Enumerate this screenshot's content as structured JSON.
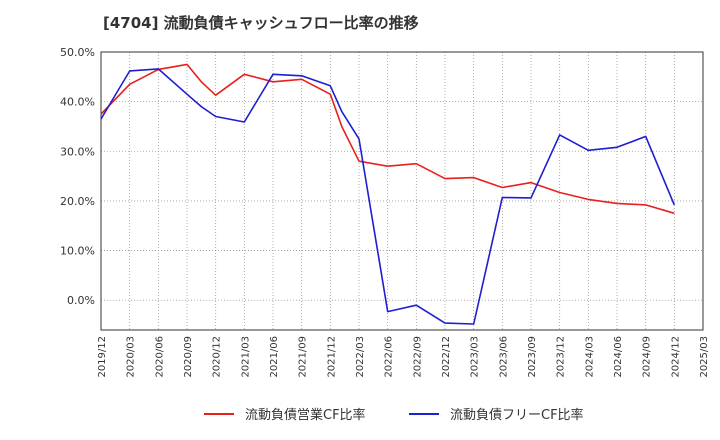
{
  "chart_data": {
    "type": "line",
    "title": "[4704]  流動負債キャッシュフロー比率の推移",
    "xlabel": "",
    "ylabel": "",
    "ylim": [
      -6,
      50
    ],
    "yticks": [
      0,
      10,
      20,
      30,
      40,
      50
    ],
    "ytick_labels": [
      "0.0%",
      "10.0%",
      "20.0%",
      "30.0%",
      "40.0%",
      "50.0%"
    ],
    "x_labels": [
      "2019/12",
      "2020/03",
      "2020/06",
      "2020/09",
      "2020/12",
      "2021/03",
      "2021/06",
      "2021/09",
      "2021/12",
      "2022/03",
      "2022/06",
      "2022/09",
      "2022/12",
      "2023/03",
      "2023/06",
      "2023/09",
      "2023/12",
      "2024/03",
      "2024/06",
      "2024/09",
      "2024/12",
      "2025/03"
    ],
    "grid": true,
    "legend_position": "bottom",
    "series": [
      {
        "name": "流動負債営業CF比率",
        "color": "#e8201c",
        "points": [
          [
            0,
            37.5
          ],
          [
            1,
            43.5
          ],
          [
            2,
            46.5
          ],
          [
            3,
            47.5
          ],
          [
            3.5,
            44.0
          ],
          [
            4,
            41.3
          ],
          [
            5,
            45.5
          ],
          [
            6,
            44.0
          ],
          [
            7,
            44.5
          ],
          [
            8,
            41.5
          ],
          [
            8.4,
            35.0
          ],
          [
            9,
            28.0
          ],
          [
            10,
            27.0
          ],
          [
            11,
            27.5
          ],
          [
            12,
            24.5
          ],
          [
            13,
            24.7
          ],
          [
            14,
            22.7
          ],
          [
            15,
            23.7
          ],
          [
            16,
            21.7
          ],
          [
            17,
            20.3
          ],
          [
            18,
            19.5
          ],
          [
            19,
            19.2
          ],
          [
            20,
            17.5
          ]
        ]
      },
      {
        "name": "流動負債フリーCF比率",
        "color": "#1e1ed2",
        "points": [
          [
            0,
            36.5
          ],
          [
            1,
            46.2
          ],
          [
            2,
            46.6
          ],
          [
            3,
            41.5
          ],
          [
            3.5,
            39.0
          ],
          [
            4,
            37.0
          ],
          [
            5,
            35.9
          ],
          [
            6,
            45.5
          ],
          [
            7,
            45.2
          ],
          [
            8,
            43.2
          ],
          [
            8.4,
            38.0
          ],
          [
            9,
            32.5
          ],
          [
            10,
            -2.3
          ],
          [
            11,
            -1.0
          ],
          [
            12,
            -4.6
          ],
          [
            13,
            -4.8
          ],
          [
            14,
            20.7
          ],
          [
            15,
            20.6
          ],
          [
            16,
            33.3
          ],
          [
            17,
            30.2
          ],
          [
            18,
            30.8
          ],
          [
            19,
            33.0
          ],
          [
            20,
            19.2
          ]
        ]
      }
    ]
  }
}
